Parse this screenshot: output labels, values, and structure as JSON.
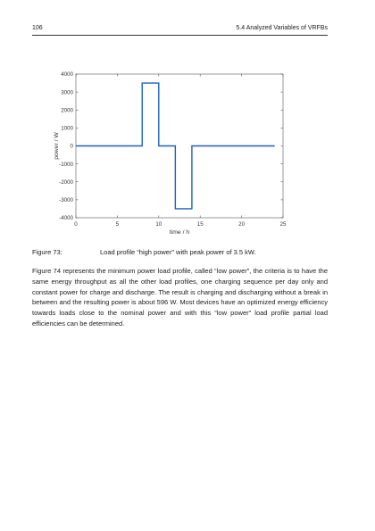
{
  "header": {
    "page_number": "106",
    "section": "5.4 Analyzed Variables of VRFBs"
  },
  "figure": {
    "label": "Figure 73:",
    "caption": "Load profile “high power” with peak power of 3.5 kW."
  },
  "paragraph": "Figure 74 represents the minimum power load profile, called “low power”, the criteria is to have the same energy throughput as all the other load profiles, one charging sequence per day only and constant power for charge and discharge. The result is charging and discharging without a break in between and the resulting power is about 596 W. Most devices have an optimized energy efficiency towards loads close to the nominal power and with this “low power” load profile partial load efficiencies can be determined.",
  "chart_data": {
    "type": "line",
    "xlabel": "time / h",
    "ylabel": "power / W",
    "xlim": [
      0,
      25
    ],
    "ylim": [
      -4000,
      4000
    ],
    "xticks": [
      0,
      5,
      10,
      15,
      20,
      25
    ],
    "yticks": [
      4000,
      3000,
      2000,
      1000,
      0,
      -1000,
      -2000,
      -3000,
      -4000
    ],
    "grid": false,
    "line_color": "#1f5fbf",
    "series": [
      {
        "x": [
          0,
          8,
          8,
          10,
          10,
          12,
          12,
          14,
          14,
          24
        ],
        "y": [
          0,
          0,
          3500,
          3500,
          0,
          0,
          -3500,
          -3500,
          0,
          0
        ]
      }
    ]
  }
}
